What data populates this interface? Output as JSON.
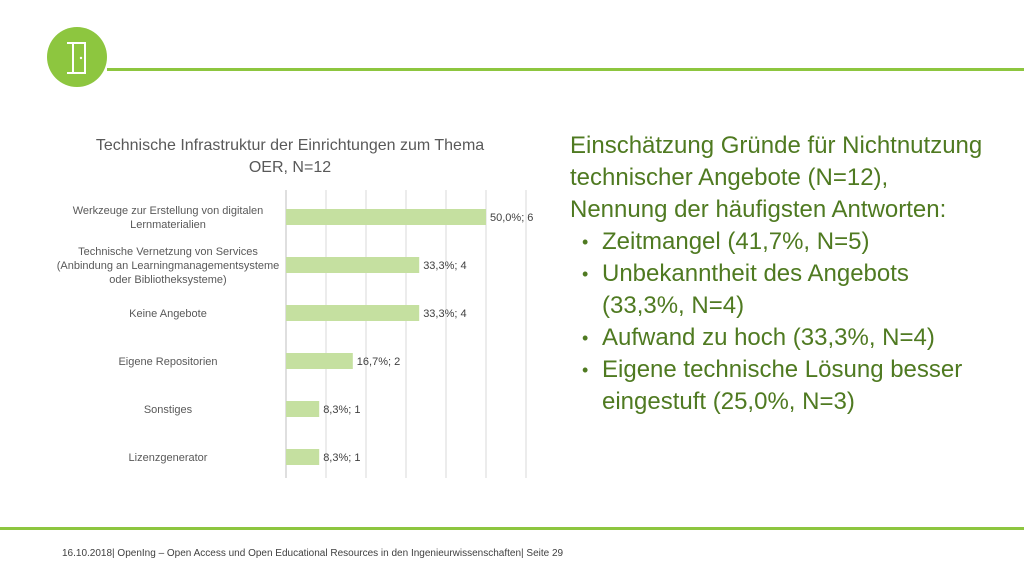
{
  "colors": {
    "accent": "#8dc63f",
    "bar": "#c5e0a0",
    "text_green": "#4f7a21",
    "axis_text": "#595959"
  },
  "logo": {
    "icon": "door-icon"
  },
  "chart_data": {
    "type": "bar",
    "orientation": "horizontal",
    "title": "Technische Infrastruktur der Einrichtungen zum Thema OER, N=12",
    "categories": [
      "Werkzeuge zur Erstellung von digitalen Lernmaterialien",
      "Technische Vernetzung von Services (Anbindung an Learningmanagementsysteme oder Bibliotheksysteme)",
      "Keine Angebote",
      "Eigene Repositorien",
      "Sonstiges",
      "Lizenzgenerator"
    ],
    "category_lines": [
      [
        "Werkzeuge zur Erstellung von digitalen",
        "Lernmaterialien"
      ],
      [
        "Technische Vernetzung von Services",
        "(Anbindung an Learningmanagementsysteme",
        "oder Bibliotheksysteme)"
      ],
      [
        "Keine Angebote"
      ],
      [
        "Eigene Repositorien"
      ],
      [
        "Sonstiges"
      ],
      [
        "Lizenzgenerator"
      ]
    ],
    "values": [
      50.0,
      33.3,
      33.3,
      16.7,
      8.3,
      8.3
    ],
    "data_labels": [
      "50,0%; 6",
      "33,3%; 4",
      "33,3%; 4",
      "16,7%; 2",
      "8,3%; 1",
      "8,3%; 1"
    ],
    "xlim": [
      0,
      60
    ],
    "grid": true,
    "legend": "none"
  },
  "panel": {
    "heading_lines": [
      "Einschätzung Gründe für Nichtnutzung",
      "technischer Angebote (N=12),",
      "Nennung der häufigsten Antworten:"
    ],
    "bullets": [
      "Zeitmangel (41,7%, N=5)",
      "Unbekanntheit des Angebots (33,3%, N=4)",
      "Aufwand zu hoch (33,3%, N=4)",
      "Eigene technische Lösung besser eingestuft (25,0%, N=3)"
    ]
  },
  "footer": {
    "text": "16.10.2018| OpenIng – Open Access und Open Educational Resources in den Ingenieurwissenschaften| Seite 29"
  }
}
